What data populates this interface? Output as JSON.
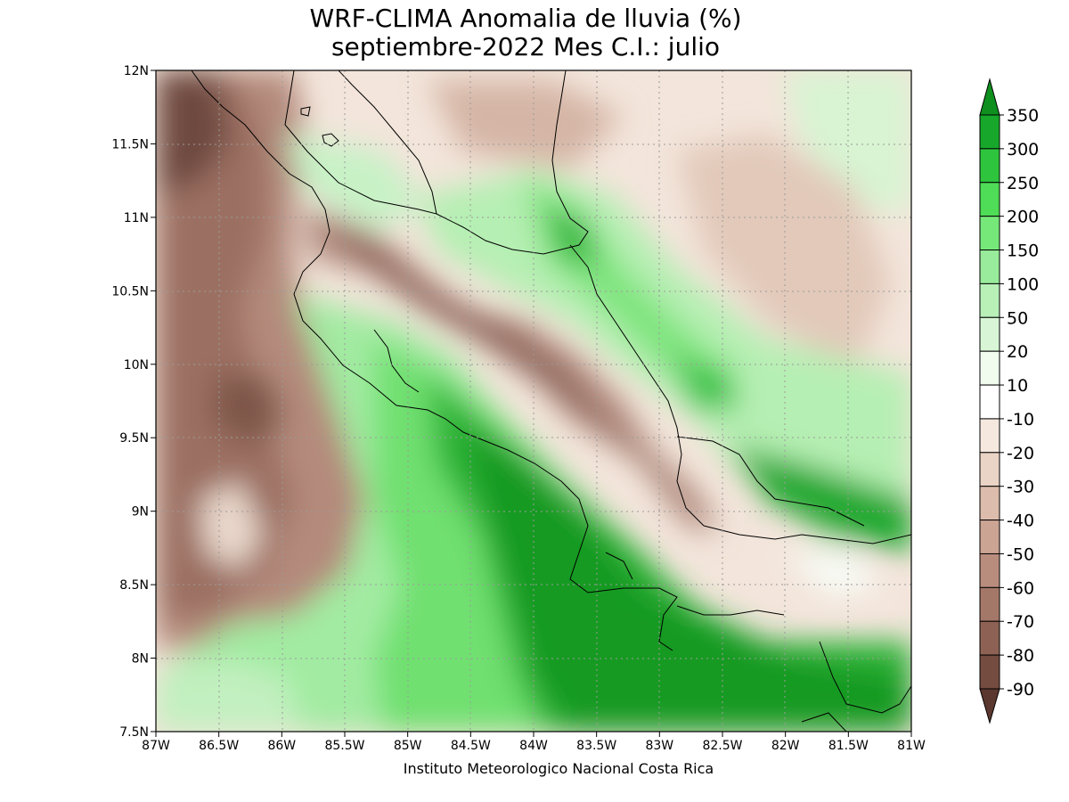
{
  "header": {
    "title_line1": "WRF-CLIMA Anomalia de lluvia (%)",
    "title_line2": "septiembre-2022 Mes C.I.: julio"
  },
  "footer": {
    "credit": "Instituto Meteorologico Nacional Costa Rica"
  },
  "map": {
    "lon_range": [
      -87,
      -81
    ],
    "lat_range": [
      7.5,
      12
    ],
    "x_ticks": [
      "87W",
      "86.5W",
      "86W",
      "85.5W",
      "85W",
      "84.5W",
      "84W",
      "83.5W",
      "83W",
      "82.5W",
      "82W",
      "81.5W",
      "81W"
    ],
    "y_ticks": [
      "7.5N",
      "8N",
      "8.5N",
      "9N",
      "9.5N",
      "10N",
      "10.5N",
      "11N",
      "11.5N",
      "12N"
    ],
    "grid": true
  },
  "colorbar": {
    "labels": [
      "350",
      "300",
      "250",
      "200",
      "150",
      "100",
      "50",
      "20",
      "10",
      "-10",
      "-20",
      "-30",
      "-40",
      "-50",
      "-60",
      "-70",
      "-80",
      "-90"
    ],
    "colors": [
      "#0e8f1e",
      "#17a82b",
      "#2ec43e",
      "#4fdc56",
      "#76e87a",
      "#99ec9b",
      "#b8f0b8",
      "#d8f6d6",
      "#f1fcef",
      "#ffffff",
      "#f5e8de",
      "#ead4c6",
      "#dcbcac",
      "#cca494",
      "#b98d7e",
      "#a47869",
      "#8d6254",
      "#744c40",
      "#5b382f"
    ]
  }
}
